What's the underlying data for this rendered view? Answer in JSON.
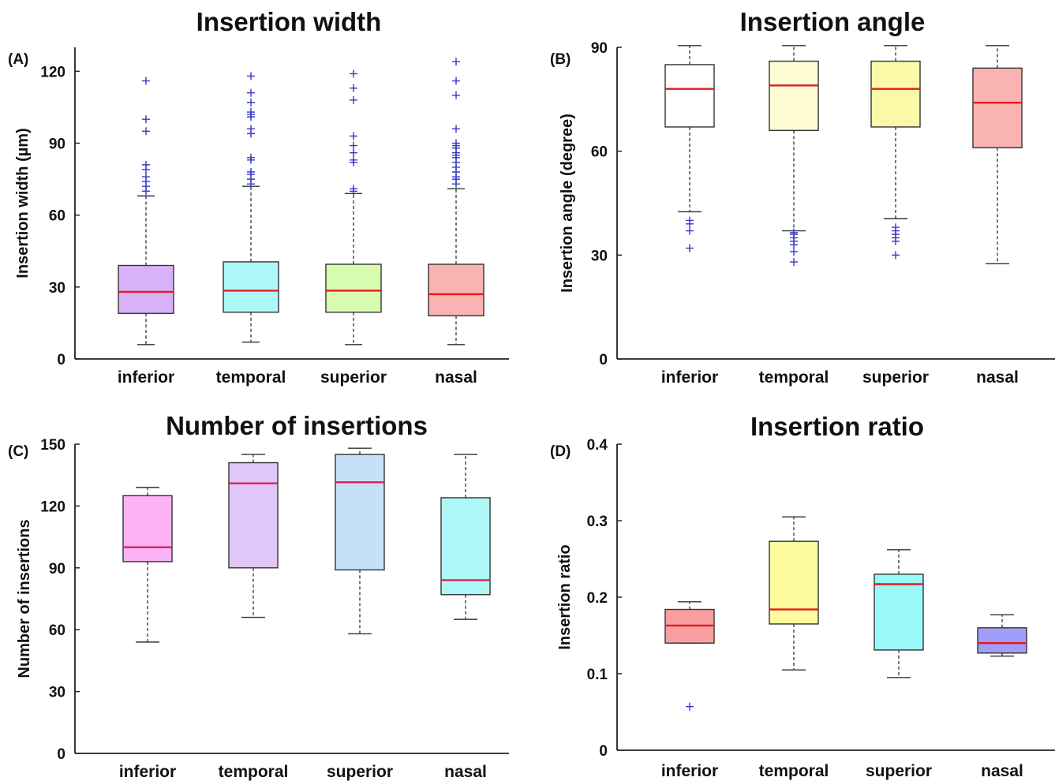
{
  "chart_data": [
    {
      "type": "box",
      "panel_label": "(A)",
      "title": "Insertion width",
      "ylabel": "Insertion width (µm)",
      "categories": [
        "inferior",
        "temporal",
        "superior",
        "nasal"
      ],
      "ylim": [
        0,
        130
      ],
      "yticks": [
        0,
        30,
        60,
        90,
        120
      ],
      "box_colors": [
        "#d8b2f8",
        "#aef8f8",
        "#d7fbb0",
        "#f9b3b3"
      ],
      "median_color": "#e31a1c",
      "outlier_color": "#3737c8",
      "boxes": [
        {
          "category": "inferior",
          "whisker_low": 6,
          "q1": 19,
          "median": 28,
          "q3": 39,
          "whisker_high": 68,
          "outliers": [
            70,
            72,
            74,
            76,
            79,
            81,
            95,
            100,
            116
          ]
        },
        {
          "category": "temporal",
          "whisker_low": 7,
          "q1": 19.5,
          "median": 28.5,
          "q3": 40.5,
          "whisker_high": 72,
          "outliers": [
            73,
            75,
            77,
            78,
            83,
            84,
            94,
            96,
            101,
            102,
            103,
            107,
            111,
            118
          ]
        },
        {
          "category": "superior",
          "whisker_low": 6,
          "q1": 19.5,
          "median": 28.5,
          "q3": 39.5,
          "whisker_high": 69,
          "outliers": [
            70,
            71,
            82,
            83,
            86,
            89,
            93,
            108,
            113,
            119
          ]
        },
        {
          "category": "nasal",
          "whisker_low": 6,
          "q1": 18,
          "median": 27,
          "q3": 39.5,
          "whisker_high": 71,
          "outliers": [
            73,
            75,
            76,
            78,
            80,
            82,
            84,
            85,
            86,
            88,
            89,
            90,
            96,
            110,
            116,
            124
          ]
        }
      ]
    },
    {
      "type": "box",
      "panel_label": "(B)",
      "title": "Insertion angle",
      "ylabel": "Insertion angle (degree)",
      "categories": [
        "inferior",
        "temporal",
        "superior",
        "nasal"
      ],
      "ylim": [
        0,
        90
      ],
      "yticks": [
        0,
        30,
        60,
        90
      ],
      "box_colors": [
        "#ffffff",
        "#fefdd6",
        "#fbf8a8",
        "#f9b3b3"
      ],
      "median_color": "#e31a1c",
      "outlier_color": "#3737c8",
      "boxes": [
        {
          "category": "inferior",
          "whisker_low": 42.5,
          "q1": 67,
          "median": 78,
          "q3": 85,
          "whisker_high": 90.5,
          "outliers": [
            32,
            37,
            39,
            40
          ]
        },
        {
          "category": "temporal",
          "whisker_low": 37,
          "q1": 66,
          "median": 79,
          "q3": 86,
          "whisker_high": 90.5,
          "outliers": [
            28,
            31,
            33,
            34,
            35,
            36,
            36.5
          ]
        },
        {
          "category": "superior",
          "whisker_low": 40.5,
          "q1": 67,
          "median": 78,
          "q3": 86,
          "whisker_high": 90.5,
          "outliers": [
            30,
            34,
            35,
            36,
            37,
            38
          ]
        },
        {
          "category": "nasal",
          "whisker_low": 27.5,
          "q1": 61,
          "median": 74,
          "q3": 84,
          "whisker_high": 90.5,
          "outliers": []
        }
      ]
    },
    {
      "type": "box",
      "panel_label": "(C)",
      "title": "Number of insertions",
      "ylabel": "Number of insertions",
      "categories": [
        "inferior",
        "temporal",
        "superior",
        "nasal"
      ],
      "ylim": [
        0,
        150
      ],
      "yticks": [
        0,
        30,
        60,
        90,
        120,
        150
      ],
      "box_colors": [
        "#fdb3f8",
        "#e1c7f8",
        "#c6e0f8",
        "#aef8f8"
      ],
      "median_color": "#d62050",
      "outlier_color": "#3737c8",
      "boxes": [
        {
          "category": "inferior",
          "whisker_low": 54,
          "q1": 93,
          "median": 100,
          "q3": 125,
          "whisker_high": 129,
          "outliers": []
        },
        {
          "category": "temporal",
          "whisker_low": 66,
          "q1": 90,
          "median": 131,
          "q3": 141,
          "whisker_high": 145,
          "outliers": []
        },
        {
          "category": "superior",
          "whisker_low": 58,
          "q1": 89,
          "median": 131.5,
          "q3": 145,
          "whisker_high": 148,
          "outliers": []
        },
        {
          "category": "nasal",
          "whisker_low": 65,
          "q1": 77,
          "median": 84,
          "q3": 124,
          "whisker_high": 145,
          "outliers": []
        }
      ]
    },
    {
      "type": "box",
      "panel_label": "(D)",
      "title": "Insertion ratio",
      "ylabel": "Insertion ratio",
      "categories": [
        "inferior",
        "temporal",
        "superior",
        "nasal"
      ],
      "ylim": [
        0,
        0.4
      ],
      "yticks": [
        0,
        0.1,
        0.2,
        0.3,
        0.4
      ],
      "box_colors": [
        "#f99f9f",
        "#fdfb9e",
        "#99f8f8",
        "#a09ef8"
      ],
      "median_color": "#e31a1c",
      "outlier_color": "#3737c8",
      "boxes": [
        {
          "category": "inferior",
          "whisker_low": 0.14,
          "q1": 0.14,
          "median": 0.163,
          "q3": 0.184,
          "whisker_high": 0.194,
          "outliers": [
            0.057
          ]
        },
        {
          "category": "temporal",
          "whisker_low": 0.105,
          "q1": 0.165,
          "median": 0.184,
          "q3": 0.273,
          "whisker_high": 0.305,
          "outliers": []
        },
        {
          "category": "superior",
          "whisker_low": 0.095,
          "q1": 0.131,
          "median": 0.217,
          "q3": 0.23,
          "whisker_high": 0.262,
          "outliers": []
        },
        {
          "category": "nasal",
          "whisker_low": 0.123,
          "q1": 0.127,
          "median": 0.14,
          "q3": 0.16,
          "whisker_high": 0.177,
          "outliers": []
        }
      ]
    }
  ]
}
